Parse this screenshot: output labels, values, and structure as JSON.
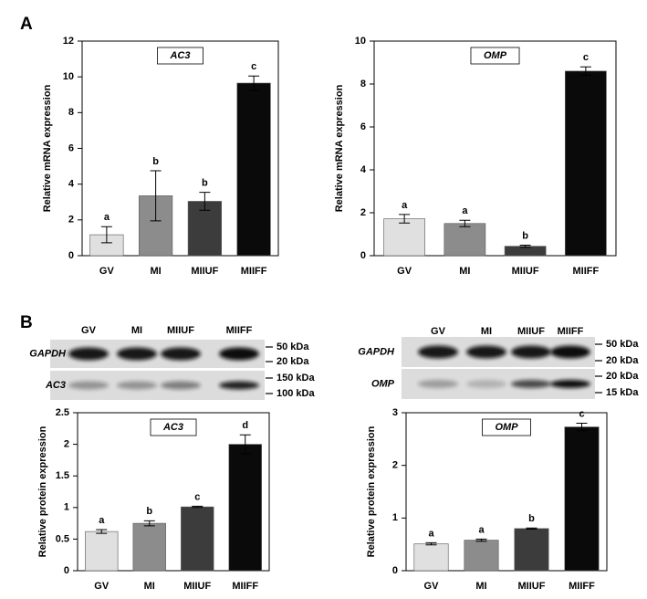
{
  "panels": [
    "A",
    "B"
  ],
  "blots": [
    {
      "lanes": [
        "GV",
        "MI",
        "MIIUF",
        "MIIFF"
      ],
      "rows": [
        {
          "label": "GAPDH",
          "markers": [
            "50 kDa",
            "20 kDa"
          ]
        },
        {
          "label": "AC3",
          "markers": [
            "150 kDa",
            "100 kDa"
          ]
        }
      ]
    },
    {
      "lanes": [
        "GV",
        "MI",
        "MIIUF",
        "MIIFF"
      ],
      "rows": [
        {
          "label": "GAPDH",
          "markers": [
            "50 kDa",
            "20 kDa"
          ]
        },
        {
          "label": "OMP",
          "markers": [
            "20 kDa",
            "15 kDa"
          ]
        }
      ]
    }
  ],
  "chart_data": [
    {
      "type": "bar",
      "title": "AC3",
      "ylabel": "Relative mRNA expression",
      "categories": [
        "GV",
        "MI",
        "MIIUF",
        "MIIFF"
      ],
      "values": [
        1.17,
        3.35,
        3.04,
        9.65
      ],
      "errors": [
        0.45,
        1.4,
        0.5,
        0.4
      ],
      "annotations": [
        "a",
        "b",
        "b",
        "c"
      ],
      "colors": [
        "#e0e0e0",
        "#8c8c8c",
        "#3c3c3c",
        "#0a0a0a"
      ],
      "ylim": [
        0,
        12
      ],
      "yticks": [
        0,
        2,
        4,
        6,
        8,
        10,
        12
      ]
    },
    {
      "type": "bar",
      "title": "OMP",
      "ylabel": "Relative mRNA expression",
      "categories": [
        "GV",
        "MI",
        "MIIUF",
        "MIIFF"
      ],
      "values": [
        1.72,
        1.5,
        0.44,
        8.6
      ],
      "errors": [
        0.2,
        0.15,
        0.05,
        0.2
      ],
      "annotations": [
        "a",
        "a",
        "b",
        "c"
      ],
      "colors": [
        "#e0e0e0",
        "#8c8c8c",
        "#3c3c3c",
        "#0a0a0a"
      ],
      "ylim": [
        0,
        10
      ],
      "yticks": [
        0,
        2,
        4,
        6,
        8,
        10
      ]
    },
    {
      "type": "bar",
      "title": "AC3",
      "ylabel": "Relative protein expression",
      "categories": [
        "GV",
        "MI",
        "MIIUF",
        "MIIFF"
      ],
      "values": [
        0.62,
        0.75,
        1.01,
        2.0
      ],
      "errors": [
        0.03,
        0.04,
        0.01,
        0.15
      ],
      "annotations": [
        "a",
        "b",
        "c",
        "d"
      ],
      "colors": [
        "#e0e0e0",
        "#8c8c8c",
        "#3c3c3c",
        "#0a0a0a"
      ],
      "ylim": [
        0,
        2.5
      ],
      "yticks": [
        0,
        0.5,
        1,
        1.5,
        2,
        2.5
      ]
    },
    {
      "type": "bar",
      "title": "OMP",
      "ylabel": "Relative protein expression",
      "categories": [
        "GV",
        "MI",
        "MIIUF",
        "MIIFF"
      ],
      "values": [
        0.51,
        0.58,
        0.8,
        2.73
      ],
      "errors": [
        0.02,
        0.02,
        0.01,
        0.07
      ],
      "annotations": [
        "a",
        "a",
        "b",
        "c"
      ],
      "colors": [
        "#e0e0e0",
        "#8c8c8c",
        "#3c3c3c",
        "#0a0a0a"
      ],
      "ylim": [
        0,
        3
      ],
      "yticks": [
        0,
        1,
        2,
        3
      ]
    }
  ]
}
